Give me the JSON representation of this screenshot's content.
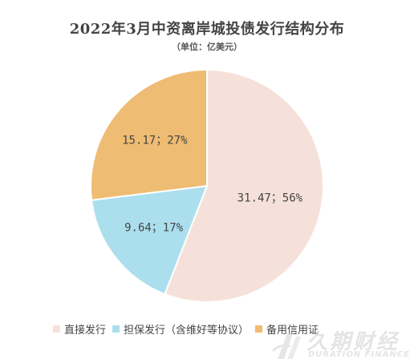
{
  "chart_data": {
    "type": "pie",
    "title": "2022年3月中资离岸城投债发行结构分布",
    "subtitle": "（单位：亿美元）",
    "slices": [
      {
        "name": "直接发行",
        "value": 31.47,
        "percent": 56,
        "label": "31.47；56%",
        "color": "#F6E1DA"
      },
      {
        "name": "担保发行（含维好等协议）",
        "value": 9.64,
        "percent": 17,
        "label": "9.64；17%",
        "color": "#ABDFEE"
      },
      {
        "name": "备用信用证",
        "value": 15.17,
        "percent": 27,
        "label": "15.17；27%",
        "color": "#EEBC72"
      }
    ],
    "start_angle": "12 o'clock",
    "direction": "clockwise",
    "legend_position": "bottom"
  },
  "watermark": {
    "cn": "久期财经",
    "en": "DURATION FINANCE"
  }
}
